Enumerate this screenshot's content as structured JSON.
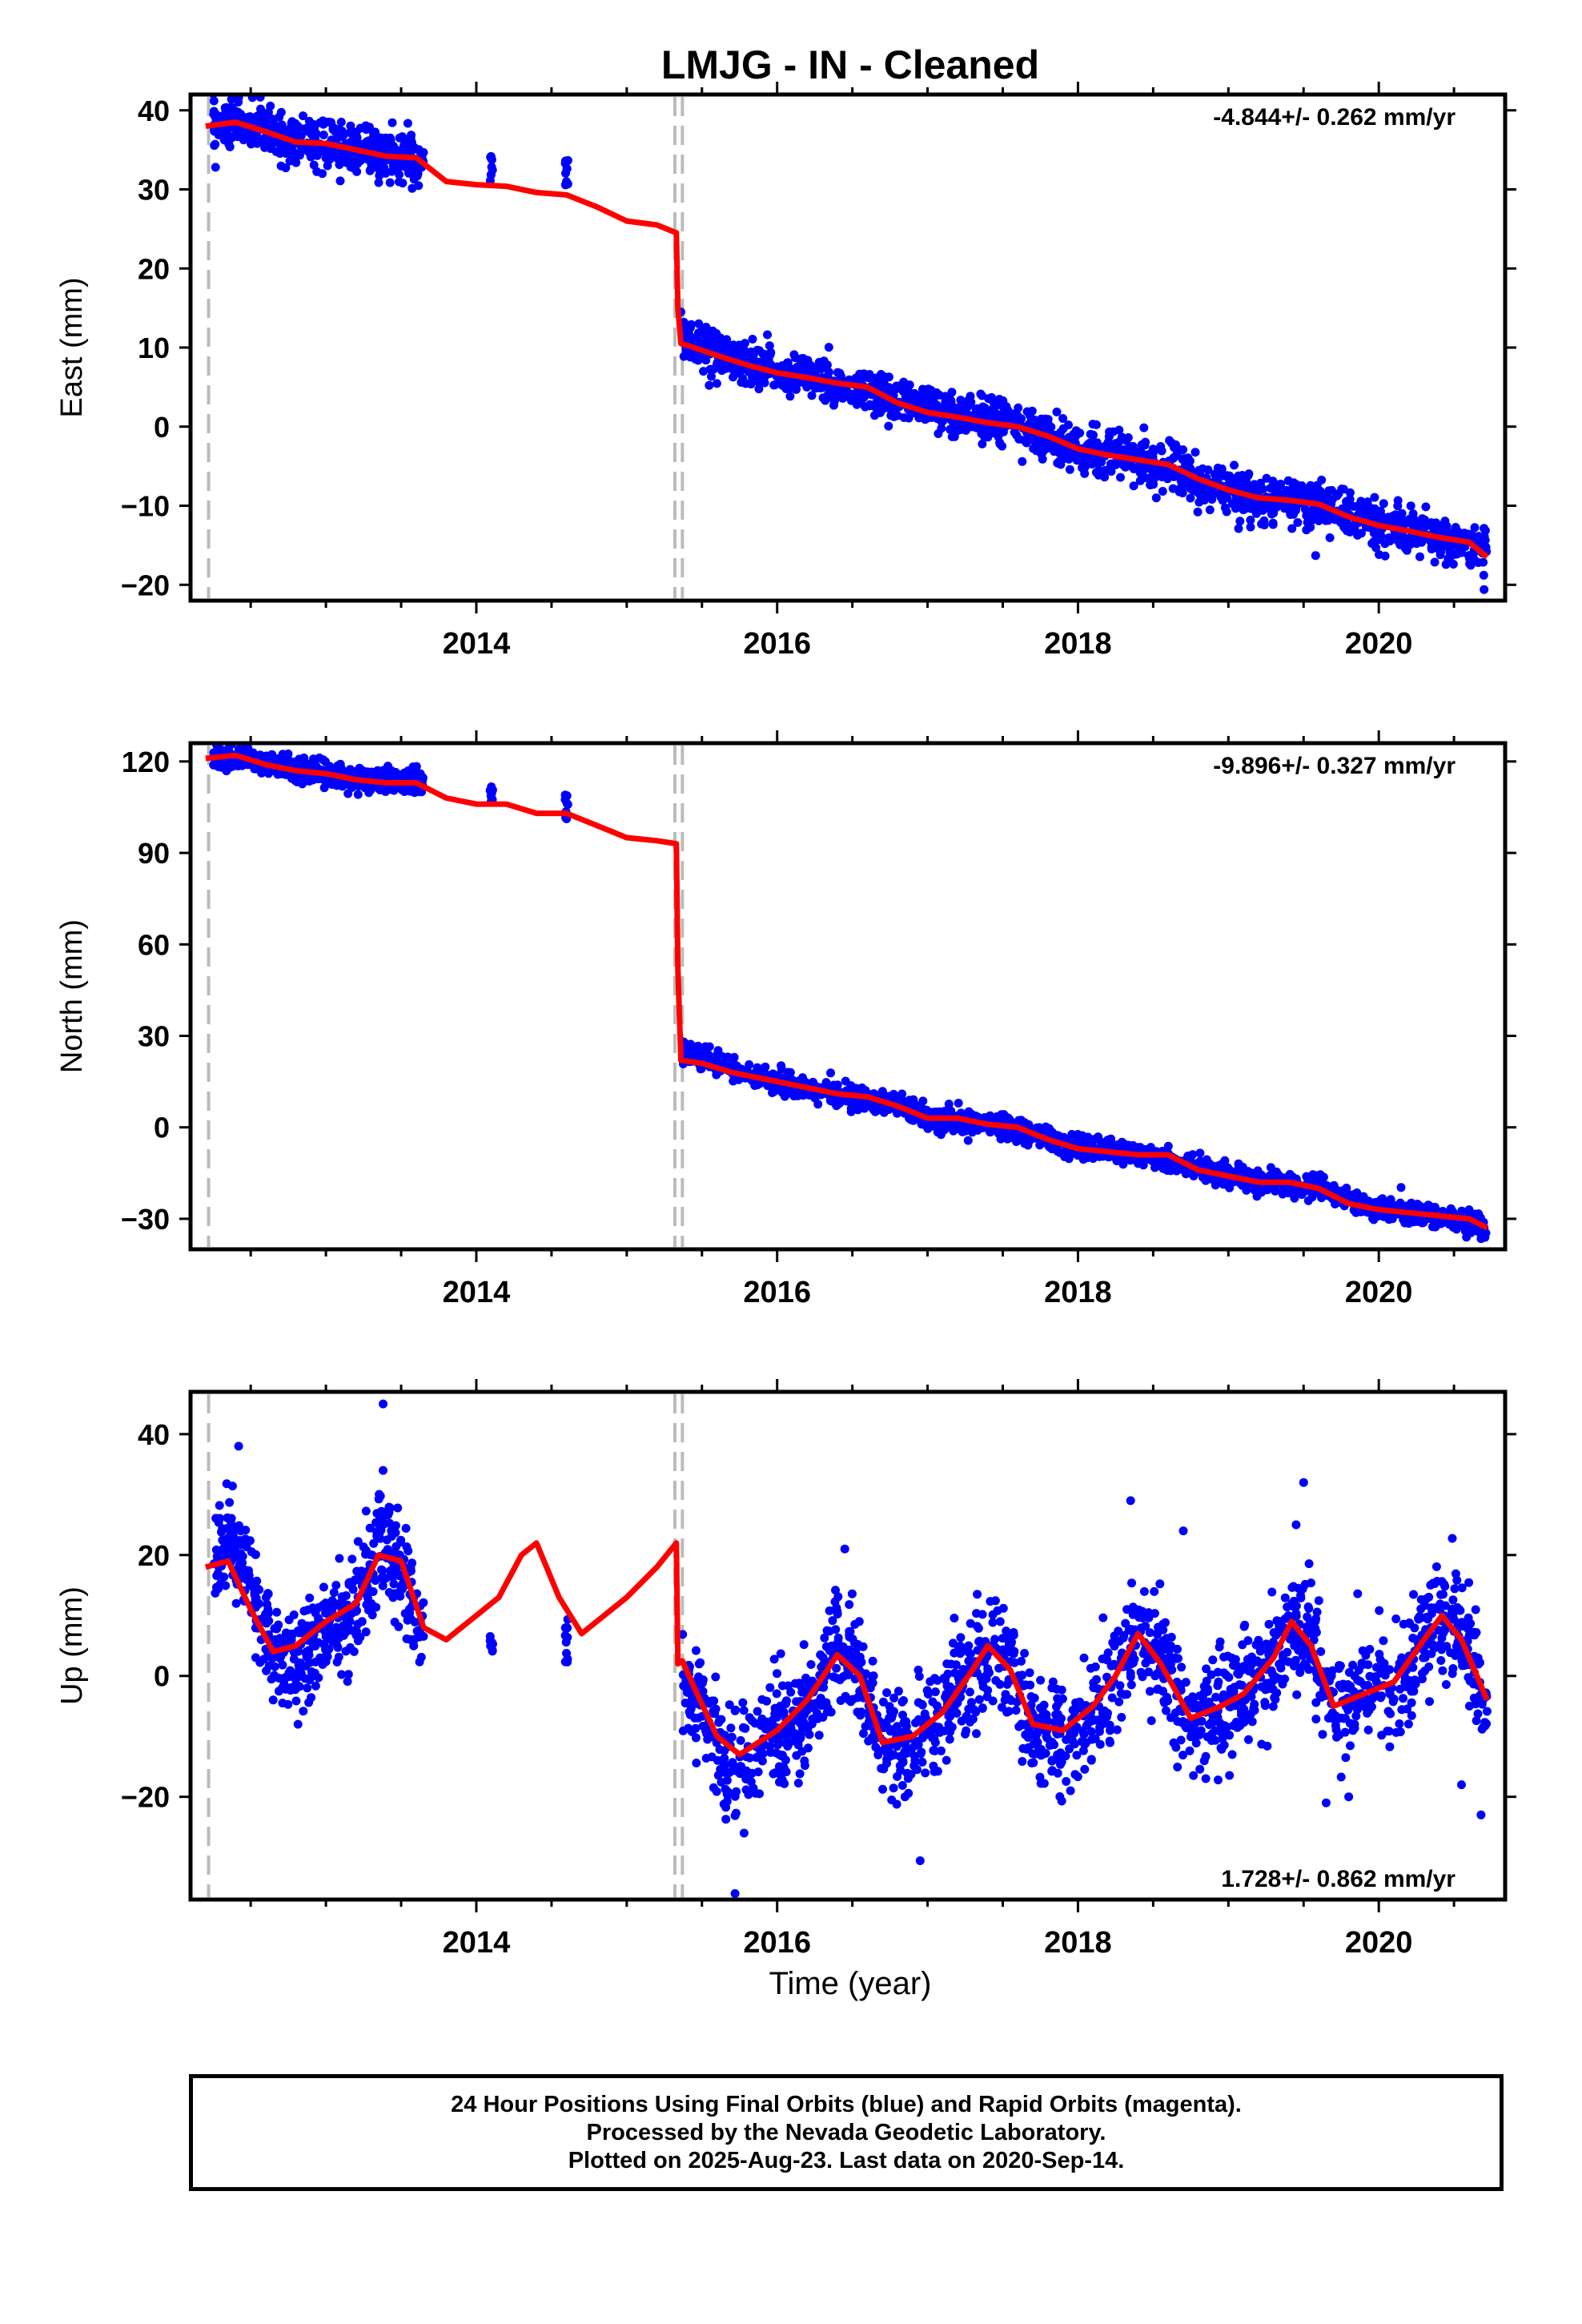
{
  "title": "LMJG  - IN - Cleaned",
  "colors": {
    "final_orbits": "#0000ff",
    "model": "#ff0000",
    "event_line": "#bbbbbb",
    "frame": "#000000"
  },
  "x_axis": {
    "label": "Time (year)",
    "ticks": [
      2014,
      2016,
      2018,
      2020
    ],
    "tick_labels": [
      "2014",
      "2016",
      "2018",
      "2020"
    ]
  },
  "footer": {
    "line1": "24 Hour Positions Using Final Orbits (blue) and Rapid Orbits (magenta).",
    "line2": "Processed by the Nevada Geodetic Laboratory.",
    "line3": "Plotted on 2025-Aug-23. Last data on 2020-Sep-14."
  },
  "chart_data": [
    {
      "type": "scatter",
      "name": "east",
      "ylabel": "East (mm)",
      "rate_text": "-4.844+/- 0.262 mm/yr",
      "xlim": [
        2012.1,
        2020.84
      ],
      "ylim": [
        -22,
        42
      ],
      "yticks": [
        40,
        30,
        20,
        10,
        0,
        -10,
        -20
      ],
      "ytick_labels": [
        "40",
        "30",
        "20",
        "10",
        "0",
        "−10",
        "−20"
      ],
      "event_lines": [
        2012.22,
        2015.32,
        2015.37
      ],
      "model": {
        "x": [
          2012.2,
          2012.4,
          2012.6,
          2012.8,
          2013.0,
          2013.2,
          2013.4,
          2013.6,
          2013.8,
          2014.0,
          2014.2,
          2014.4,
          2014.6,
          2014.8,
          2015.0,
          2015.2,
          2015.33,
          2015.34,
          2015.36,
          2015.4,
          2015.6,
          2015.8,
          2016.0,
          2016.2,
          2016.4,
          2016.6,
          2016.8,
          2017.0,
          2017.2,
          2017.4,
          2017.6,
          2017.8,
          2018.0,
          2018.2,
          2018.4,
          2018.6,
          2018.8,
          2019.0,
          2019.2,
          2019.4,
          2019.6,
          2019.8,
          2020.0,
          2020.2,
          2020.4,
          2020.6,
          2020.72
        ],
        "y": [
          38.0,
          38.5,
          37.3,
          36.0,
          35.8,
          35.0,
          34.2,
          34.0,
          31.0,
          30.6,
          30.4,
          29.6,
          29.3,
          27.8,
          26.0,
          25.5,
          24.5,
          15.0,
          10.5,
          10.3,
          9.0,
          7.8,
          6.8,
          6.2,
          5.5,
          5.0,
          3.0,
          1.8,
          1.2,
          0.5,
          0.0,
          -1.2,
          -2.8,
          -3.6,
          -4.2,
          -4.8,
          -6.6,
          -8.0,
          -9.0,
          -9.3,
          -9.8,
          -11.4,
          -12.5,
          -13.2,
          -14.0,
          -14.6,
          -16.5
        ]
      },
      "observations": {
        "segments": [
          {
            "from": 2012.25,
            "to": 2013.65,
            "points": [
              [
                2012.25,
                38.0
              ],
              [
                2012.5,
                38.2
              ],
              [
                2012.75,
                36.2
              ],
              [
                2013.0,
                35.8
              ],
              [
                2013.3,
                34.6
              ],
              [
                2013.65,
                33.8
              ]
            ],
            "noise": 1.5,
            "count": 520
          },
          {
            "from": 2015.37,
            "to": 2020.72,
            "points": [
              [
                2015.37,
                11.5
              ],
              [
                2015.6,
                9.4
              ],
              [
                2015.8,
                8.0
              ],
              [
                2016.0,
                7.0
              ],
              [
                2016.4,
                5.4
              ],
              [
                2016.8,
                3.2
              ],
              [
                2017.2,
                1.3
              ],
              [
                2017.6,
                0.0
              ],
              [
                2018.0,
                -2.8
              ],
              [
                2018.4,
                -4.3
              ],
              [
                2018.8,
                -6.7
              ],
              [
                2019.2,
                -9.0
              ],
              [
                2019.6,
                -9.9
              ],
              [
                2020.0,
                -12.5
              ],
              [
                2020.4,
                -14.0
              ],
              [
                2020.72,
                -16.0
              ]
            ],
            "noise": 1.4,
            "count": 1700
          }
        ],
        "clusters": [
          {
            "x": 2014.1,
            "y_from": 31.0,
            "y_to": 34.5,
            "count": 10
          },
          {
            "x": 2014.6,
            "y_from": 30.5,
            "y_to": 33.8,
            "count": 10
          }
        ],
        "outliers": [
          [
            2020.7,
            -20.6
          ],
          [
            2019.58,
            -16.3
          ],
          [
            2015.36,
            14.5
          ],
          [
            2015.38,
            13.2
          ]
        ]
      }
    },
    {
      "type": "scatter",
      "name": "north",
      "ylabel": "North (mm)",
      "rate_text": "-9.896+/- 0.327 mm/yr",
      "xlim": [
        2012.1,
        2020.84
      ],
      "ylim": [
        -40,
        126
      ],
      "yticks": [
        120,
        90,
        60,
        30,
        0,
        -30
      ],
      "ytick_labels": [
        "120",
        "90",
        "60",
        "30",
        "0",
        "−30"
      ],
      "event_lines": [
        2012.22,
        2015.32,
        2015.37
      ],
      "model": {
        "x": [
          2012.2,
          2012.4,
          2012.6,
          2012.8,
          2013.0,
          2013.2,
          2013.4,
          2013.6,
          2013.8,
          2014.0,
          2014.2,
          2014.4,
          2014.6,
          2014.8,
          2015.0,
          2015.2,
          2015.33,
          2015.34,
          2015.36,
          2015.5,
          2015.7,
          2016.0,
          2016.2,
          2016.4,
          2016.6,
          2016.8,
          2017.0,
          2017.2,
          2017.4,
          2017.6,
          2017.8,
          2018.0,
          2018.2,
          2018.4,
          2018.6,
          2018.8,
          2019.0,
          2019.2,
          2019.4,
          2019.6,
          2019.8,
          2020.0,
          2020.2,
          2020.4,
          2020.6,
          2020.72
        ],
        "y": [
          121,
          122,
          119,
          117,
          116,
          114,
          113,
          113,
          108,
          106,
          106,
          103,
          103,
          99,
          95,
          94,
          93,
          52,
          22,
          21,
          18,
          15,
          13,
          11,
          10,
          7,
          3,
          3,
          1,
          0,
          -4,
          -7,
          -8,
          -9,
          -9,
          -14,
          -16,
          -18,
          -18,
          -20,
          -25,
          -27,
          -28,
          -29,
          -30,
          -33
        ]
      },
      "observations": {
        "segments": [
          {
            "from": 2012.25,
            "to": 2013.65,
            "points": [
              [
                2012.25,
                120.5
              ],
              [
                2012.5,
                121.0
              ],
              [
                2012.75,
                117.5
              ],
              [
                2013.0,
                116.0
              ],
              [
                2013.3,
                114.0
              ],
              [
                2013.65,
                113.0
              ]
            ],
            "noise": 2.0,
            "count": 520
          },
          {
            "from": 2015.37,
            "to": 2020.72,
            "points": [
              [
                2015.37,
                25.0
              ],
              [
                2015.6,
                20.5
              ],
              [
                2015.8,
                17.0
              ],
              [
                2016.0,
                14.5
              ],
              [
                2016.4,
                11.0
              ],
              [
                2016.8,
                7.5
              ],
              [
                2017.0,
                3.5
              ],
              [
                2017.4,
                1.0
              ],
              [
                2017.8,
                -3.5
              ],
              [
                2018.0,
                -7.0
              ],
              [
                2018.4,
                -9.0
              ],
              [
                2018.8,
                -13.5
              ],
              [
                2019.2,
                -17.5
              ],
              [
                2019.6,
                -19.5
              ],
              [
                2020.0,
                -26.5
              ],
              [
                2020.4,
                -29.0
              ],
              [
                2020.72,
                -32.5
              ]
            ],
            "noise": 1.8,
            "count": 1700
          }
        ],
        "clusters": [
          {
            "x": 2014.1,
            "y_from": 107,
            "y_to": 112,
            "count": 8
          },
          {
            "x": 2014.6,
            "y_from": 101,
            "y_to": 109,
            "count": 10
          }
        ],
        "outliers": [
          [
            2020.68,
            -36.5
          ],
          [
            2015.38,
            28.0
          ],
          [
            2012.3,
            124.0
          ]
        ]
      }
    },
    {
      "type": "scatter",
      "name": "up",
      "ylabel": "Up (mm)",
      "rate_text": "1.728+/- 0.862 mm/yr",
      "xlim": [
        2012.1,
        2020.84
      ],
      "ylim": [
        -37,
        47
      ],
      "yticks": [
        40,
        20,
        0,
        -20
      ],
      "ytick_labels": [
        "40",
        "20",
        "0",
        "−20"
      ],
      "event_lines": [
        2012.22,
        2015.32,
        2015.37
      ],
      "model": {
        "x": [
          2012.2,
          2012.35,
          2012.5,
          2012.65,
          2012.8,
          2013.0,
          2013.2,
          2013.35,
          2013.5,
          2013.65,
          2013.8,
          2014.0,
          2014.15,
          2014.3,
          2014.4,
          2014.55,
          2014.7,
          2014.85,
          2015.0,
          2015.2,
          2015.33,
          2015.34,
          2015.37,
          2015.45,
          2015.6,
          2015.75,
          2016.0,
          2016.2,
          2016.4,
          2016.55,
          2016.7,
          2016.9,
          2017.1,
          2017.3,
          2017.4,
          2017.55,
          2017.7,
          2017.9,
          2018.1,
          2018.25,
          2018.4,
          2018.55,
          2018.75,
          2018.95,
          2019.1,
          2019.3,
          2019.42,
          2019.55,
          2019.7,
          2019.9,
          2020.1,
          2020.3,
          2020.42,
          2020.55,
          2020.72
        ],
        "y": [
          18,
          19,
          11,
          4,
          5,
          9,
          12,
          20,
          19,
          8,
          6,
          10,
          13,
          20,
          22,
          13,
          7,
          10,
          13,
          18,
          22,
          2,
          2.5,
          -2,
          -10,
          -13,
          -9,
          -4,
          3.5,
          0,
          -11,
          -10,
          -6,
          1,
          5,
          1,
          -8,
          -9,
          -5,
          0,
          7,
          2,
          -7,
          -5,
          -3,
          3,
          9,
          5,
          -5,
          -3,
          -1,
          6,
          10,
          6,
          -4
        ]
      },
      "observations": {
        "segments": [
          {
            "from": 2012.25,
            "to": 2013.65,
            "points": [
              [
                2012.25,
                18
              ],
              [
                2012.35,
                24
              ],
              [
                2012.5,
                15
              ],
              [
                2012.65,
                4
              ],
              [
                2012.8,
                2
              ],
              [
                2013.0,
                8
              ],
              [
                2013.2,
                12
              ],
              [
                2013.35,
                22
              ],
              [
                2013.5,
                17
              ],
              [
                2013.65,
                4
              ]
            ],
            "noise": 4.2,
            "count": 520
          },
          {
            "from": 2015.37,
            "to": 2020.72,
            "points": [
              [
                2015.37,
                0
              ],
              [
                2015.45,
                -4
              ],
              [
                2015.6,
                -12
              ],
              [
                2015.75,
                -14
              ],
              [
                2016.0,
                -10
              ],
              [
                2016.2,
                -5
              ],
              [
                2016.4,
                4
              ],
              [
                2016.55,
                1
              ],
              [
                2016.7,
                -12
              ],
              [
                2016.9,
                -10
              ],
              [
                2017.1,
                -6
              ],
              [
                2017.3,
                1
              ],
              [
                2017.4,
                5
              ],
              [
                2017.55,
                2
              ],
              [
                2017.7,
                -9
              ],
              [
                2017.9,
                -10
              ],
              [
                2018.1,
                -5
              ],
              [
                2018.25,
                0
              ],
              [
                2018.4,
                7
              ],
              [
                2018.55,
                3
              ],
              [
                2018.75,
                -8
              ],
              [
                2018.95,
                -5
              ],
              [
                2019.1,
                -3
              ],
              [
                2019.3,
                3
              ],
              [
                2019.42,
                9
              ],
              [
                2019.55,
                5
              ],
              [
                2019.7,
                -6
              ],
              [
                2019.9,
                -3
              ],
              [
                2020.1,
                -1
              ],
              [
                2020.3,
                6
              ],
              [
                2020.42,
                10
              ],
              [
                2020.55,
                6
              ],
              [
                2020.72,
                -4
              ]
            ],
            "noise": 4.5,
            "count": 1700
          }
        ],
        "clusters": [
          {
            "x": 2014.1,
            "y_from": 4,
            "y_to": 8,
            "count": 8
          },
          {
            "x": 2014.6,
            "y_from": 2,
            "y_to": 10,
            "count": 10
          }
        ],
        "outliers": [
          [
            2013.38,
            45
          ],
          [
            2012.42,
            38
          ],
          [
            2013.38,
            34
          ],
          [
            2015.72,
            -36
          ],
          [
            2015.78,
            -26
          ],
          [
            2016.45,
            21
          ],
          [
            2018.35,
            29
          ],
          [
            2018.7,
            24
          ],
          [
            2019.5,
            32
          ],
          [
            2019.45,
            25
          ],
          [
            2020.68,
            -23
          ],
          [
            2020.55,
            -18
          ],
          [
            2019.65,
            -21
          ],
          [
            2019.8,
            -20
          ],
          [
            2016.85,
            -20
          ],
          [
            2017.95,
            -19
          ],
          [
            2018.85,
            -17
          ]
        ]
      }
    }
  ]
}
